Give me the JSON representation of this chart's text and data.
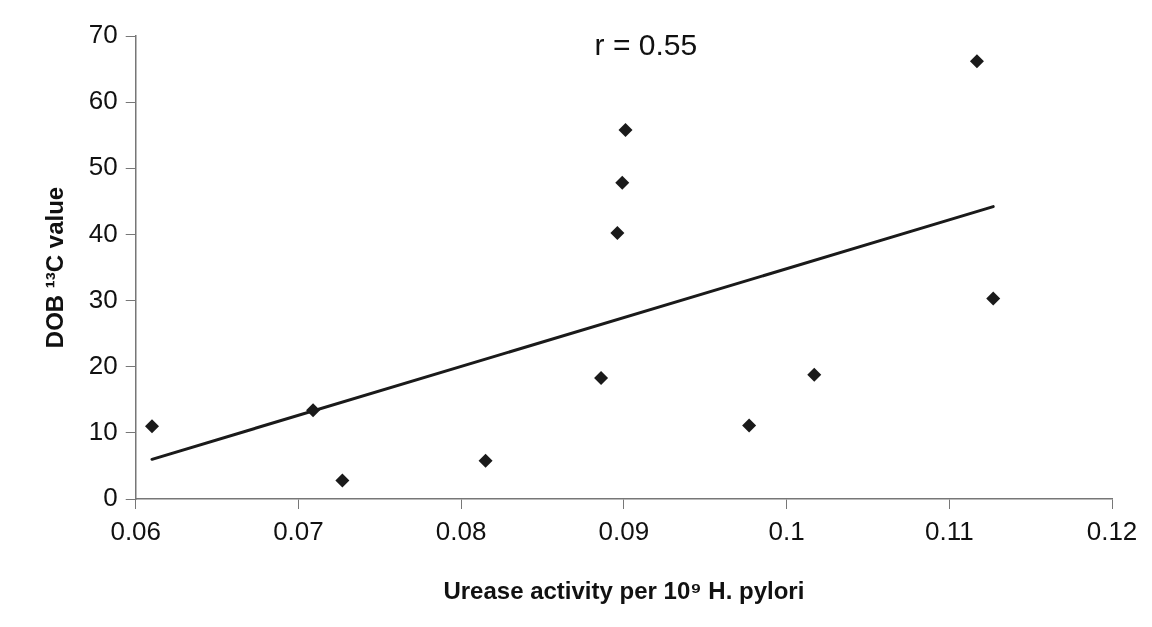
{
  "chart_data": {
    "type": "scatter",
    "xlabel": "Urease activity per 10⁹ H. pylori",
    "ylabel": "DOB ¹³C value",
    "annotations": [
      "r = 0.55"
    ],
    "grid": false,
    "legend": false,
    "xlim": [
      0.06,
      0.12
    ],
    "xticks": [
      0.06,
      0.07,
      0.08,
      0.09,
      {
        "value": 0.1,
        "label": "0.1"
      },
      0.11,
      0.12
    ],
    "ylim": [
      0,
      70
    ],
    "yticks": [
      0,
      10,
      20,
      30,
      40,
      50,
      60,
      70
    ],
    "series": [
      {
        "marker": "diamond",
        "color": "#1a1a1a",
        "x": [
          0.061,
          0.0709,
          0.0727,
          0.0815,
          0.0886,
          0.0896,
          0.0899,
          0.0901,
          0.0977,
          0.1017,
          0.1117,
          0.1127
        ],
        "values": [
          11.0,
          13.4,
          2.8,
          5.8,
          18.3,
          40.2,
          47.8,
          55.8,
          11.1,
          18.8,
          66.2,
          30.3
        ]
      },
      {
        "type": "line",
        "marker": "none",
        "color": "#1a1a1a",
        "x": [
          0.061,
          0.1127
        ],
        "values": [
          6.0,
          44.2
        ]
      }
    ]
  }
}
